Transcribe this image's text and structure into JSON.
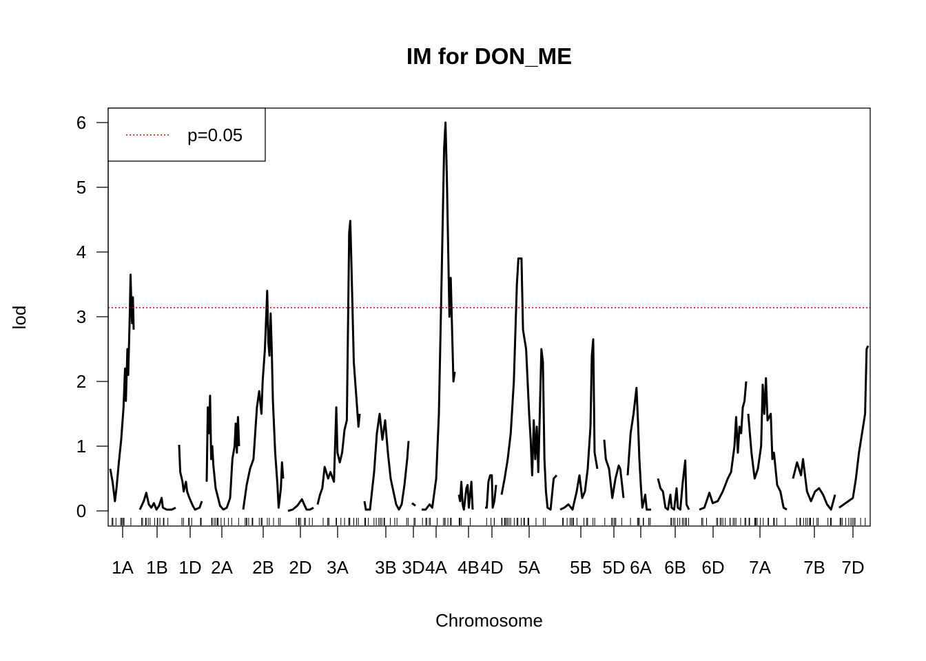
{
  "chart_data": {
    "type": "line",
    "title": "IM for DON_ME",
    "xlabel": "Chromosome",
    "ylabel": "lod",
    "ylim": [
      0,
      6.2
    ],
    "yticks": [
      0,
      1,
      2,
      3,
      4,
      5,
      6
    ],
    "threshold": {
      "label": "p=0.05",
      "value": 3.14,
      "color": "#cc0000"
    },
    "legend": {
      "placement": "top-left",
      "entries": [
        "p=0.05"
      ]
    },
    "grid": false,
    "chromosomes": [
      "1A",
      "1B",
      "1D",
      "2A",
      "2B",
      "2D",
      "3A",
      "3B",
      "3D",
      "4A",
      "4B",
      "4D",
      "5A",
      "5B",
      "5D",
      "6A",
      "6B",
      "6D",
      "7A",
      "7B",
      "7D"
    ],
    "series": [
      {
        "chr": "1A",
        "points": [
          [
            0,
            0.65
          ],
          [
            3,
            0.45
          ],
          [
            6,
            0.15
          ],
          [
            8,
            0.35
          ],
          [
            11,
            0.75
          ],
          [
            14,
            1.1
          ],
          [
            17,
            1.6
          ],
          [
            19,
            2.2
          ],
          [
            20,
            1.7
          ],
          [
            22,
            2.5
          ],
          [
            23,
            2.1
          ],
          [
            25,
            3.0
          ],
          [
            26,
            3.65
          ],
          [
            27,
            3.2
          ],
          [
            28,
            2.9
          ],
          [
            29,
            3.3
          ],
          [
            30,
            2.8
          ]
        ]
      },
      {
        "chr": "1B",
        "points": [
          [
            0,
            0.02
          ],
          [
            3,
            0.15
          ],
          [
            5,
            0.28
          ],
          [
            7,
            0.1
          ],
          [
            9,
            0.05
          ],
          [
            11,
            0.12
          ],
          [
            13,
            0.02
          ],
          [
            15,
            0.08
          ],
          [
            17,
            0.2
          ],
          [
            18,
            0.05
          ],
          [
            21,
            0.02
          ],
          [
            25,
            0.02
          ],
          [
            28,
            0.05
          ]
        ]
      },
      {
        "chr": "1D",
        "points": [
          [
            0,
            1.02
          ],
          [
            1,
            0.6
          ],
          [
            3,
            0.45
          ],
          [
            4,
            0.3
          ],
          [
            6,
            0.45
          ],
          [
            7,
            0.3
          ],
          [
            9,
            0.2
          ],
          [
            12,
            0.08
          ],
          [
            14,
            0.02
          ],
          [
            18,
            0.05
          ],
          [
            20,
            0.15
          ]
        ]
      },
      {
        "chr": "2A",
        "points": [
          [
            0,
            0.45
          ],
          [
            1,
            1.6
          ],
          [
            2,
            1.2
          ],
          [
            3,
            1.78
          ],
          [
            4,
            0.8
          ],
          [
            5,
            1.0
          ],
          [
            6,
            0.7
          ],
          [
            8,
            0.35
          ],
          [
            12,
            0.08
          ],
          [
            15,
            0.02
          ],
          [
            18,
            0.05
          ],
          [
            21,
            0.2
          ],
          [
            23,
            0.8
          ],
          [
            25,
            1.0
          ],
          [
            26,
            1.35
          ],
          [
            27,
            0.9
          ],
          [
            28,
            1.45
          ],
          [
            29,
            1.0
          ]
        ]
      },
      {
        "chr": "2B",
        "points": [
          [
            0,
            0.02
          ],
          [
            3,
            0.4
          ],
          [
            6,
            0.65
          ],
          [
            9,
            0.8
          ],
          [
            12,
            1.6
          ],
          [
            14,
            1.85
          ],
          [
            16,
            1.5
          ],
          [
            17,
            2.0
          ],
          [
            19,
            2.5
          ],
          [
            21,
            3.4
          ],
          [
            22,
            2.6
          ],
          [
            23,
            2.4
          ],
          [
            24,
            3.05
          ],
          [
            25,
            2.5
          ],
          [
            26,
            1.7
          ],
          [
            28,
            0.9
          ],
          [
            30,
            0.4
          ],
          [
            31,
            0.05
          ],
          [
            33,
            0.35
          ],
          [
            34,
            0.75
          ],
          [
            35,
            0.5
          ]
        ]
      },
      {
        "chr": "2D",
        "points": [
          [
            0,
            0.0
          ],
          [
            4,
            0.02
          ],
          [
            8,
            0.08
          ],
          [
            12,
            0.18
          ],
          [
            14,
            0.1
          ],
          [
            16,
            0.02
          ],
          [
            19,
            0.02
          ],
          [
            22,
            0.05
          ]
        ]
      },
      {
        "chr": "3A",
        "points": [
          [
            0,
            0.1
          ],
          [
            2,
            0.25
          ],
          [
            4,
            0.35
          ],
          [
            6,
            0.68
          ],
          [
            9,
            0.5
          ],
          [
            11,
            0.6
          ],
          [
            14,
            0.45
          ],
          [
            16,
            1.6
          ],
          [
            17,
            0.9
          ],
          [
            19,
            0.75
          ],
          [
            21,
            0.9
          ],
          [
            23,
            1.25
          ],
          [
            25,
            1.4
          ],
          [
            27,
            4.3
          ],
          [
            28,
            4.48
          ],
          [
            29,
            3.8
          ],
          [
            31,
            2.3
          ],
          [
            33,
            1.8
          ],
          [
            35,
            1.3
          ],
          [
            36,
            1.5
          ]
        ]
      },
      {
        "chr": "3B",
        "points": [
          [
            0,
            0.15
          ],
          [
            1,
            0.02
          ],
          [
            4,
            0.02
          ],
          [
            7,
            0.6
          ],
          [
            9,
            1.2
          ],
          [
            11,
            1.5
          ],
          [
            13,
            1.1
          ],
          [
            15,
            1.4
          ],
          [
            17,
            0.9
          ],
          [
            19,
            0.5
          ],
          [
            21,
            0.3
          ],
          [
            23,
            0.1
          ],
          [
            25,
            0.02
          ],
          [
            27,
            0.1
          ],
          [
            29,
            0.4
          ],
          [
            31,
            0.8
          ],
          [
            32,
            1.08
          ]
        ]
      },
      {
        "chr": "3D",
        "points": [
          [
            0,
            0.12
          ],
          [
            1,
            0.08
          ]
        ]
      },
      {
        "chr": "4A",
        "points": [
          [
            0,
            0.02
          ],
          [
            3,
            0.02
          ],
          [
            6,
            0.1
          ],
          [
            8,
            0.05
          ],
          [
            11,
            0.5
          ],
          [
            13,
            1.5
          ],
          [
            15,
            3.5
          ],
          [
            17,
            5.6
          ],
          [
            18,
            6.0
          ],
          [
            19,
            5.2
          ],
          [
            21,
            3.0
          ],
          [
            22,
            3.6
          ],
          [
            24,
            2.0
          ],
          [
            25,
            2.15
          ]
        ]
      },
      {
        "chr": "4B",
        "points": [
          [
            0,
            0.25
          ],
          [
            1,
            0.15
          ],
          [
            2,
            0.45
          ],
          [
            3,
            0.1
          ],
          [
            4,
            0.02
          ],
          [
            6,
            0.35
          ],
          [
            7,
            0.4
          ],
          [
            8,
            0.05
          ],
          [
            10,
            0.45
          ],
          [
            11,
            0.02
          ]
        ]
      },
      {
        "chr": "4D",
        "points": [
          [
            0,
            0.05
          ],
          [
            2,
            0.05
          ],
          [
            4,
            0.45
          ],
          [
            6,
            0.55
          ],
          [
            8,
            0.55
          ],
          [
            9,
            0.05
          ],
          [
            11,
            0.15
          ],
          [
            13,
            0.4
          ]
        ]
      },
      {
        "chr": "5A",
        "points": [
          [
            0,
            0.25
          ],
          [
            2,
            0.5
          ],
          [
            4,
            0.8
          ],
          [
            6,
            1.2
          ],
          [
            8,
            2.0
          ],
          [
            10,
            3.5
          ],
          [
            11,
            3.9
          ],
          [
            13,
            3.9
          ],
          [
            14,
            2.8
          ],
          [
            16,
            2.5
          ],
          [
            18,
            1.5
          ],
          [
            19,
            1.1
          ],
          [
            20,
            0.55
          ],
          [
            21,
            1.4
          ],
          [
            22,
            0.8
          ],
          [
            23,
            1.3
          ],
          [
            24,
            0.6
          ],
          [
            26,
            2.5
          ],
          [
            27,
            2.3
          ],
          [
            28,
            0.8
          ],
          [
            29,
            0.3
          ],
          [
            30,
            0.05
          ],
          [
            32,
            0.02
          ],
          [
            34,
            0.5
          ],
          [
            36,
            0.55
          ]
        ]
      },
      {
        "chr": "5B",
        "points": [
          [
            0,
            0.02
          ],
          [
            3,
            0.05
          ],
          [
            6,
            0.1
          ],
          [
            9,
            0.02
          ],
          [
            12,
            0.3
          ],
          [
            14,
            0.55
          ],
          [
            16,
            0.2
          ],
          [
            18,
            0.3
          ],
          [
            20,
            0.65
          ],
          [
            22,
            1.3
          ],
          [
            23,
            2.4
          ],
          [
            24,
            2.65
          ],
          [
            25,
            0.9
          ],
          [
            27,
            0.65
          ]
        ]
      },
      {
        "chr": "5D",
        "points": [
          [
            0,
            1.1
          ],
          [
            1,
            0.8
          ],
          [
            3,
            0.65
          ],
          [
            5,
            0.2
          ],
          [
            7,
            0.5
          ],
          [
            9,
            0.7
          ],
          [
            10,
            0.65
          ],
          [
            12,
            0.2
          ]
        ]
      },
      {
        "chr": "6A",
        "points": [
          [
            0,
            0.55
          ],
          [
            2,
            1.2
          ],
          [
            4,
            1.5
          ],
          [
            6,
            1.9
          ],
          [
            7,
            1.4
          ],
          [
            8,
            0.8
          ],
          [
            9,
            0.4
          ],
          [
            10,
            0.05
          ],
          [
            12,
            0.25
          ],
          [
            13,
            0.02
          ],
          [
            16,
            0.02
          ]
        ]
      },
      {
        "chr": "6B",
        "points": [
          [
            0,
            0.5
          ],
          [
            2,
            0.35
          ],
          [
            4,
            0.3
          ],
          [
            6,
            0.05
          ],
          [
            8,
            0.02
          ],
          [
            10,
            0.25
          ],
          [
            11,
            0.05
          ],
          [
            13,
            0.02
          ],
          [
            15,
            0.35
          ],
          [
            16,
            0.05
          ],
          [
            18,
            0.02
          ],
          [
            20,
            0.45
          ],
          [
            22,
            0.78
          ],
          [
            23,
            0.1
          ],
          [
            25,
            0.02
          ]
        ]
      },
      {
        "chr": "6D",
        "points": [
          [
            0,
            0.02
          ],
          [
            3,
            0.05
          ],
          [
            6,
            0.28
          ],
          [
            8,
            0.12
          ],
          [
            11,
            0.15
          ],
          [
            14,
            0.3
          ],
          [
            17,
            0.5
          ],
          [
            19,
            0.6
          ],
          [
            21,
            1.0
          ],
          [
            22,
            1.45
          ],
          [
            23,
            0.9
          ],
          [
            24,
            1.3
          ],
          [
            25,
            1.2
          ],
          [
            26,
            1.6
          ],
          [
            27,
            1.7
          ],
          [
            28,
            2.0
          ]
        ]
      },
      {
        "chr": "7A",
        "points": [
          [
            0,
            1.5
          ],
          [
            2,
            0.9
          ],
          [
            4,
            0.5
          ],
          [
            6,
            0.65
          ],
          [
            8,
            1.0
          ],
          [
            9,
            1.95
          ],
          [
            10,
            1.5
          ],
          [
            11,
            2.05
          ],
          [
            12,
            1.4
          ],
          [
            14,
            1.5
          ],
          [
            15,
            0.8
          ],
          [
            16,
            0.9
          ],
          [
            18,
            0.4
          ],
          [
            20,
            0.3
          ],
          [
            22,
            0.05
          ],
          [
            24,
            0.02
          ]
        ]
      },
      {
        "chr": "7B",
        "points": [
          [
            0,
            0.5
          ],
          [
            2,
            0.75
          ],
          [
            4,
            0.55
          ],
          [
            5,
            0.8
          ],
          [
            7,
            0.3
          ],
          [
            9,
            0.15
          ],
          [
            11,
            0.3
          ],
          [
            13,
            0.35
          ],
          [
            15,
            0.25
          ],
          [
            17,
            0.1
          ],
          [
            19,
            0.02
          ],
          [
            21,
            0.25
          ]
        ]
      },
      {
        "chr": "7D",
        "points": [
          [
            0,
            0.05
          ],
          [
            3,
            0.1
          ],
          [
            6,
            0.15
          ],
          [
            9,
            0.2
          ],
          [
            11,
            0.5
          ],
          [
            13,
            0.9
          ],
          [
            15,
            1.2
          ],
          [
            17,
            1.5
          ],
          [
            18,
            2.5
          ],
          [
            19,
            2.55
          ]
        ]
      }
    ]
  }
}
